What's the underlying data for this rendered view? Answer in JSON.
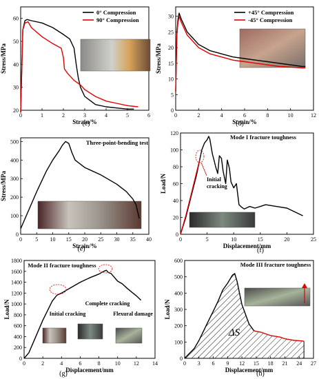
{
  "chart_data": [
    {
      "panel": "(c)",
      "type": "line",
      "xlabel": "Strain/%",
      "ylabel": "Stress/MPa",
      "xlim": [
        0,
        6
      ],
      "ylim": [
        20,
        65
      ],
      "xticks": [
        0,
        1,
        2,
        3,
        4,
        5,
        6
      ],
      "yticks": [
        20,
        30,
        40,
        50,
        60
      ],
      "legend": "top-right",
      "inset_photo": true,
      "series": [
        {
          "name": "0° Compression",
          "color": "#000000",
          "x": [
            0,
            0.1,
            0.2,
            0.3,
            0.5,
            1.0,
            1.5,
            2.0,
            2.3,
            2.5,
            2.6,
            2.7,
            2.8,
            3.0,
            3.5,
            4.0,
            4.5,
            5.0,
            5.3
          ],
          "y": [
            19,
            55,
            59,
            59.5,
            59,
            58,
            56,
            53,
            51,
            47,
            40,
            34,
            30,
            26,
            22.5,
            21.5,
            21,
            20.5,
            20.5
          ]
        },
        {
          "name": "90° Compression",
          "color": "#e00000",
          "x": [
            0,
            0.1,
            0.2,
            0.35,
            0.5,
            1.0,
            1.5,
            1.9,
            2.0,
            2.05,
            2.2,
            2.5,
            2.8,
            3.0,
            3.5,
            4.0,
            4.5,
            5.0,
            5.5
          ],
          "y": [
            19,
            55,
            58,
            58.5,
            56,
            52,
            49,
            47,
            43,
            38,
            36,
            33,
            31,
            29,
            26,
            24,
            23,
            22,
            21.5
          ]
        }
      ]
    },
    {
      "panel": "(d)",
      "type": "line",
      "xlabel": "Strain/%",
      "ylabel": "Stress/MPa",
      "xlim": [
        0,
        12
      ],
      "ylim": [
        0,
        33
      ],
      "xticks": [
        0,
        2,
        4,
        6,
        8,
        10,
        12
      ],
      "yticks": [
        0,
        5,
        10,
        15,
        20,
        25,
        30
      ],
      "legend": "top-right",
      "inset_photo": true,
      "series": [
        {
          "name": "+45° Compression",
          "color": "#000000",
          "x": [
            0,
            0.1,
            0.2,
            0.3,
            0.5,
            1,
            2,
            3,
            4,
            5,
            6,
            7,
            8,
            9,
            10,
            11,
            11.3
          ],
          "y": [
            6,
            25,
            29,
            31,
            29,
            25,
            21,
            19,
            18,
            17,
            16.5,
            16,
            15.5,
            15,
            14.5,
            14,
            14
          ]
        },
        {
          "name": "-45° Compression",
          "color": "#e00000",
          "x": [
            0,
            0.1,
            0.2,
            0.3,
            0.5,
            1,
            2,
            3,
            4,
            5,
            6,
            7,
            8,
            9,
            10,
            11,
            11.3
          ],
          "y": [
            6,
            24,
            28,
            30,
            28,
            24,
            20,
            18,
            17,
            16,
            15.5,
            15,
            14.5,
            14,
            13.8,
            13.5,
            13.5
          ]
        }
      ]
    },
    {
      "panel": "(e)",
      "type": "line",
      "title": "Three-point-bending test",
      "xlabel": "Strain/%",
      "ylabel": "Stress/MPa",
      "xlim": [
        0,
        40
      ],
      "ylim": [
        0,
        520
      ],
      "xticks": [
        0,
        5,
        10,
        15,
        20,
        25,
        30,
        35,
        40
      ],
      "yticks": [
        0,
        100,
        200,
        300,
        400,
        500
      ],
      "inset_photo": true,
      "series": [
        {
          "name": "",
          "color": "#000000",
          "x": [
            0,
            2,
            5,
            8,
            10,
            12,
            13,
            14,
            15,
            16,
            17,
            20,
            25,
            30,
            33,
            35,
            36,
            37
          ],
          "y": [
            30,
            110,
            230,
            340,
            400,
            450,
            480,
            500,
            490,
            440,
            400,
            360,
            320,
            270,
            230,
            190,
            160,
            85
          ]
        }
      ]
    },
    {
      "panel": "(f)",
      "type": "line",
      "title": "Mode I fracture toughness",
      "xlabel": "Displacement/mm",
      "ylabel": "Load/N",
      "xlim": [
        0,
        25
      ],
      "ylim": [
        0,
        120
      ],
      "xticks": [
        0,
        5,
        10,
        15,
        20,
        25
      ],
      "yticks": [
        0,
        20,
        40,
        60,
        80,
        100,
        120
      ],
      "annotations": [
        "Initial cracking"
      ],
      "inset_photo": true,
      "series": [
        {
          "name": "",
          "color": "#000000",
          "x": [
            0,
            1,
            2,
            3,
            3.5,
            4,
            4.5,
            5,
            5.3,
            5.5,
            6,
            6.3,
            6.6,
            7,
            7.3,
            7.7,
            8,
            8.5,
            8.8,
            9.2,
            9.5,
            10,
            10.5,
            11,
            11.5,
            12,
            13,
            14,
            16,
            18,
            20,
            22,
            23
          ],
          "y": [
            0,
            20,
            45,
            70,
            85,
            100,
            108,
            112,
            116,
            113,
            95,
            88,
            80,
            72,
            93,
            90,
            75,
            60,
            88,
            78,
            62,
            55,
            60,
            35,
            32,
            30,
            33,
            31,
            35,
            33,
            31,
            25,
            22
          ]
        },
        {
          "name": "",
          "color": "#e00000",
          "x": [
            0,
            1,
            2,
            3,
            3.6
          ],
          "y": [
            0,
            22,
            47,
            73,
            88
          ]
        }
      ]
    },
    {
      "panel": "(g)",
      "type": "line",
      "title": "Mode II fracture toughness",
      "xlabel": "Displacement/mm",
      "ylabel": "Load/N",
      "xlim": [
        0,
        14
      ],
      "ylim": [
        0,
        1800
      ],
      "xticks": [
        0,
        2,
        4,
        6,
        8,
        10,
        12,
        14
      ],
      "yticks": [
        0,
        200,
        400,
        600,
        800,
        1000,
        1200,
        1400,
        1600,
        1800
      ],
      "annotations": [
        "Initial cracking",
        "Complete cracking",
        "Flexural damage"
      ],
      "inset_photo": true,
      "series": [
        {
          "name": "",
          "color": "#000000",
          "x": [
            0,
            0.5,
            1,
            2,
            3,
            3.5,
            4,
            5,
            6,
            7,
            8,
            8.5,
            8.8,
            9,
            9.3,
            9.6,
            10,
            10.5,
            11,
            11.5,
            12,
            12.5
          ],
          "y": [
            0,
            100,
            300,
            700,
            1050,
            1160,
            1200,
            1300,
            1400,
            1480,
            1550,
            1600,
            1620,
            1580,
            1560,
            1500,
            1420,
            1370,
            1290,
            1220,
            1150,
            1070
          ]
        }
      ]
    },
    {
      "panel": "(h)",
      "type": "area",
      "title": "Mode III fracture toughness",
      "xlabel": "Displacement/mm",
      "ylabel": "Load/N",
      "xlim": [
        0,
        27
      ],
      "ylim": [
        0,
        600
      ],
      "xticks": [
        0,
        3,
        6,
        9,
        12,
        15,
        18,
        21,
        24,
        27
      ],
      "yticks": [
        0,
        100,
        200,
        300,
        400,
        500,
        600
      ],
      "annotations": [
        "ΔS"
      ],
      "inset_photo": true,
      "series": [
        {
          "name": "",
          "color": "#000000",
          "x": [
            0,
            1,
            2,
            3,
            4,
            5,
            6,
            7,
            8,
            9,
            10,
            10.5,
            11,
            11.5,
            12,
            12.5,
            13,
            13.5,
            14,
            14.5
          ],
          "y": [
            0,
            30,
            60,
            110,
            170,
            230,
            290,
            350,
            420,
            460,
            510,
            520,
            470,
            400,
            330,
            290,
            250,
            210,
            190,
            170
          ]
        },
        {
          "name": "",
          "color": "#e00000",
          "x": [
            14.5,
            15,
            16,
            17,
            18,
            19,
            20,
            21,
            22,
            23,
            24,
            25
          ],
          "y": [
            170,
            165,
            160,
            150,
            140,
            135,
            130,
            120,
            115,
            110,
            108,
            105
          ]
        }
      ]
    }
  ]
}
